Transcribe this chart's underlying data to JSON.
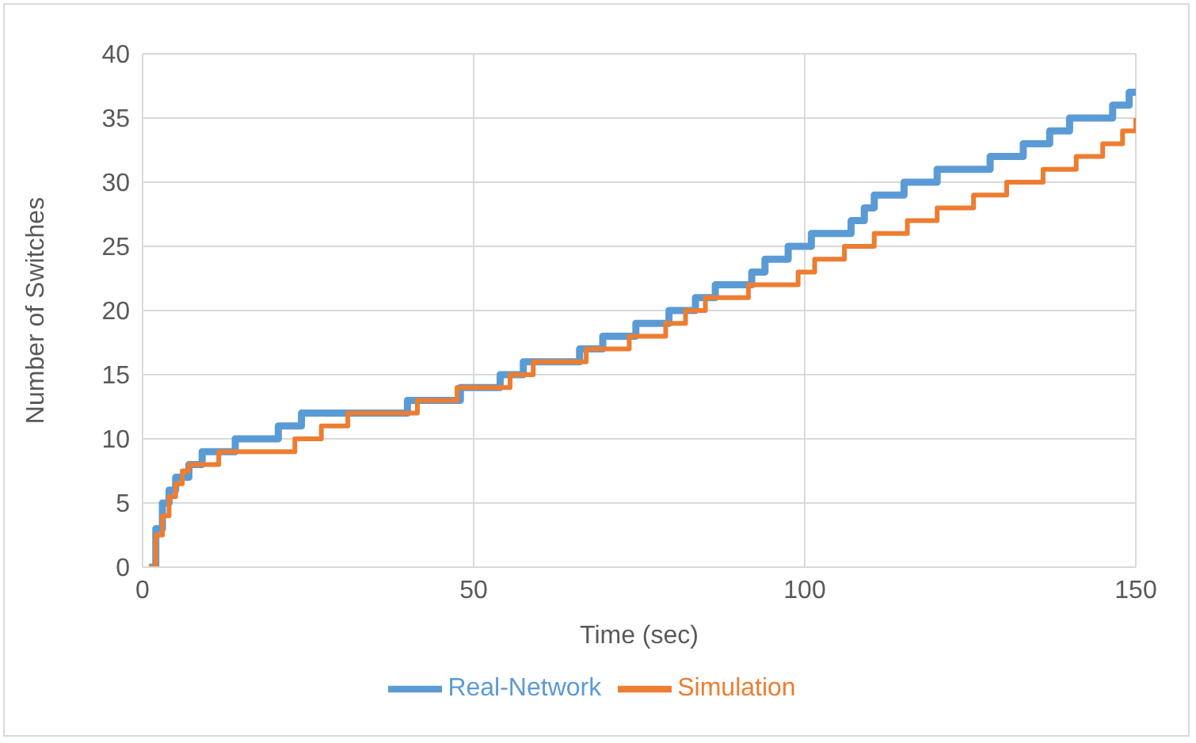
{
  "chart_data": {
    "type": "step",
    "xlabel": "Time (sec)",
    "ylabel": "Number of Switches",
    "xlim": [
      0,
      150
    ],
    "xticks": [
      0,
      50,
      100,
      150
    ],
    "ylim": [
      0,
      40
    ],
    "yticks": [
      0,
      5,
      10,
      15,
      20,
      25,
      30,
      35,
      40
    ],
    "grid": true,
    "legend": "bottom",
    "marker": "none",
    "line_style": "solid",
    "series": [
      {
        "name": "Real-Network",
        "color": "#5b9bd5",
        "x": [
          1,
          2,
          3,
          4,
          5,
          7,
          9,
          14,
          20.5,
          24,
          40,
          48,
          54,
          57.5,
          66,
          69.5,
          74.5,
          79.5,
          83.5,
          86.5,
          92,
          94,
          97.5,
          101,
          107,
          109,
          110.5,
          115,
          120,
          128,
          133,
          137,
          140,
          146.5,
          149,
          150
        ],
        "values": [
          0,
          3,
          5,
          6,
          7,
          8,
          9,
          10,
          11,
          12,
          13,
          14,
          15,
          16,
          17,
          18,
          19,
          20,
          21,
          22,
          23,
          24,
          25,
          26,
          27,
          28,
          29,
          30,
          31,
          32,
          33,
          34,
          35,
          36,
          37,
          37
        ]
      },
      {
        "name": "Simulation",
        "color": "#ed7d31",
        "x": [
          1,
          2,
          3,
          4,
          5,
          6,
          7,
          11.5,
          23,
          27,
          31,
          41.5,
          47.5,
          55.5,
          59,
          67,
          73.5,
          79,
          82,
          85,
          91.5,
          99,
          101.5,
          106,
          110.5,
          115.5,
          120,
          125.5,
          130.5,
          136,
          141,
          145,
          148,
          150
        ],
        "values": [
          0,
          2.5,
          4,
          5.5,
          6.5,
          7.5,
          8,
          9,
          10,
          11,
          12,
          13,
          14,
          15,
          16,
          17,
          18,
          19,
          20,
          21,
          22,
          23,
          24,
          25,
          26,
          27,
          28,
          29,
          30,
          31,
          32,
          33,
          34,
          35
        ]
      }
    ]
  }
}
